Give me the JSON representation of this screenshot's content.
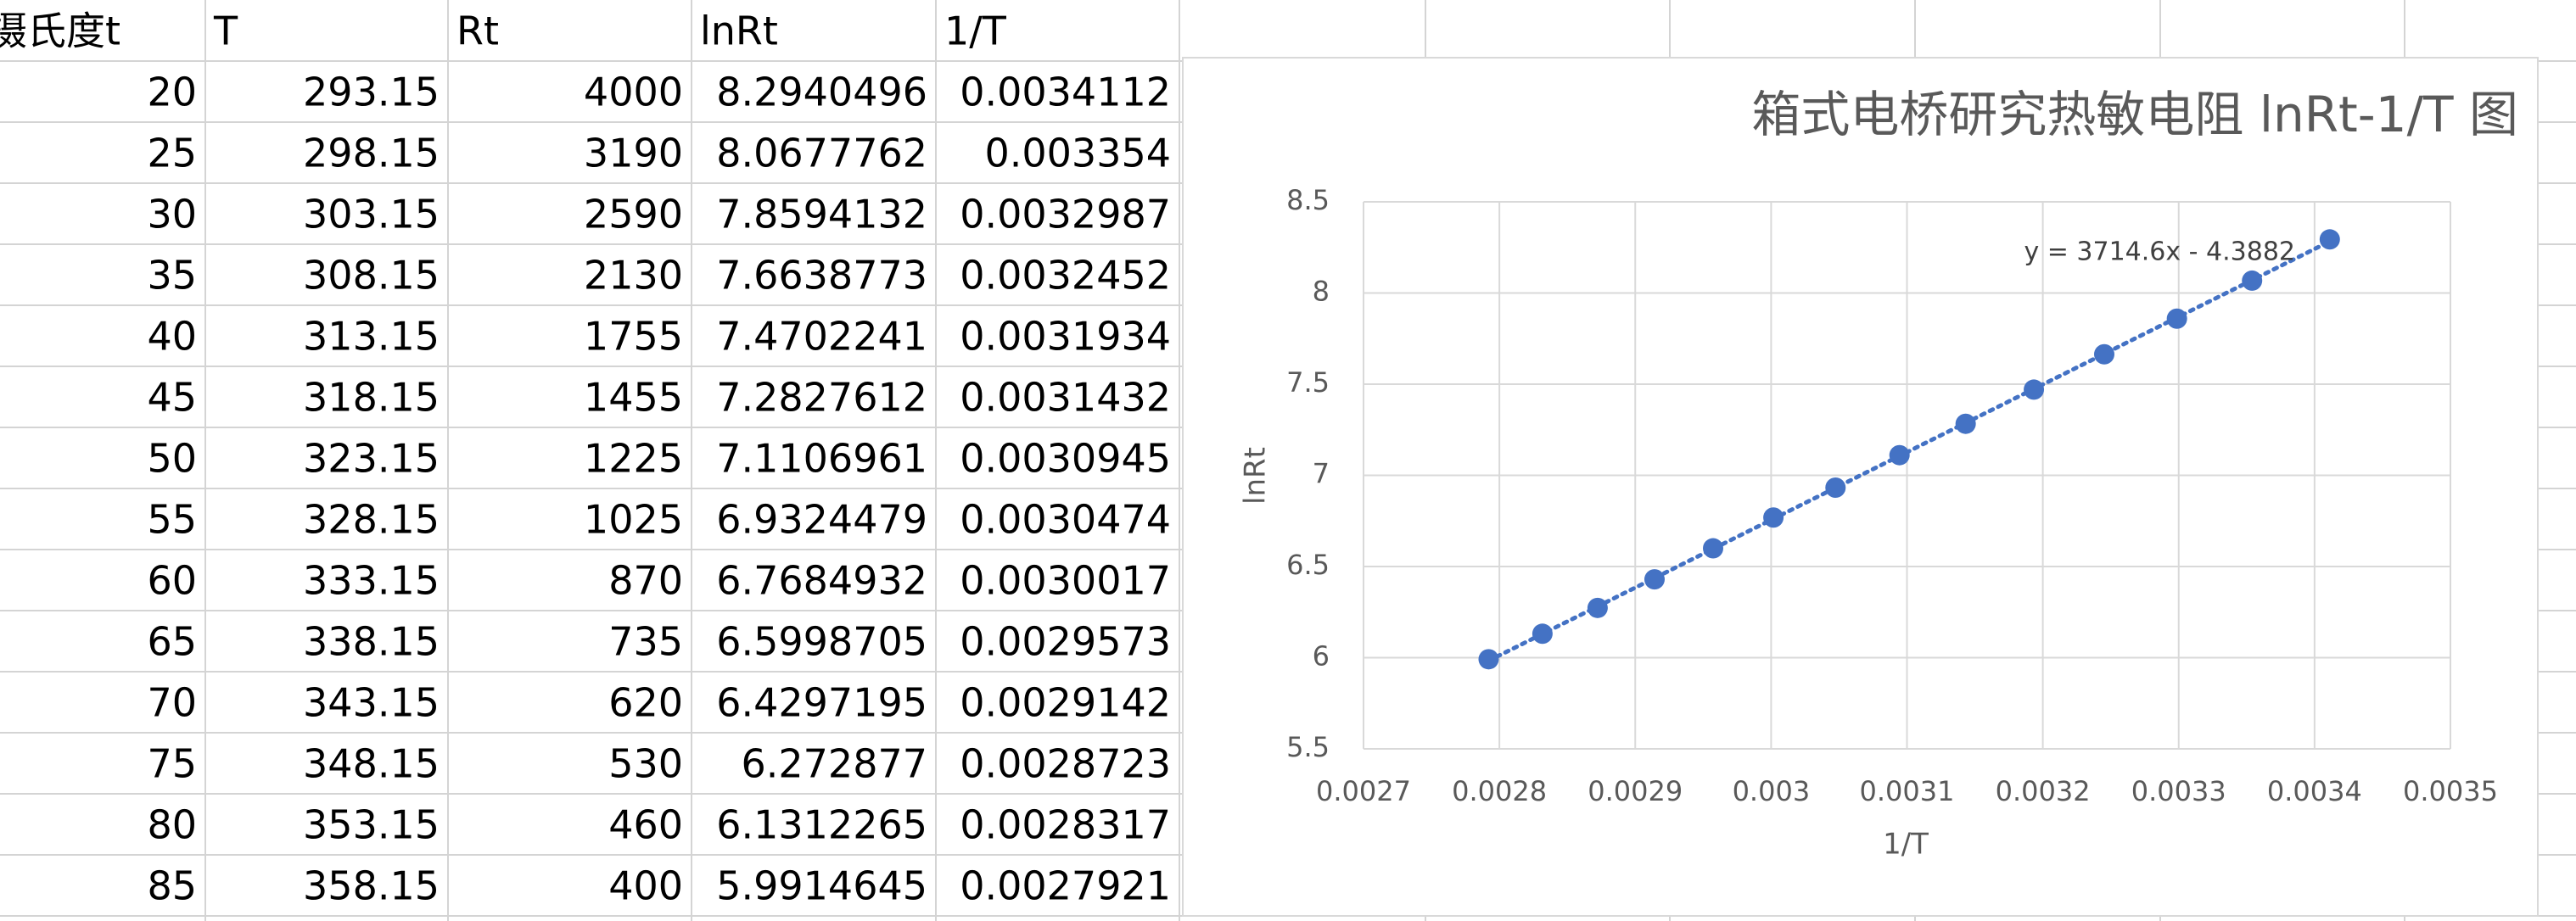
{
  "table": {
    "columns": [
      "摄氏度t",
      "T",
      "Rt",
      "lnRt",
      "1/T"
    ],
    "rows": [
      [
        20,
        293.15,
        4000,
        8.2940496,
        0.0034112
      ],
      [
        25,
        298.15,
        3190,
        8.0677762,
        0.003354
      ],
      [
        30,
        303.15,
        2590,
        7.8594132,
        0.0032987
      ],
      [
        35,
        308.15,
        2130,
        7.6638773,
        0.0032452
      ],
      [
        40,
        313.15,
        1755,
        7.4702241,
        0.0031934
      ],
      [
        45,
        318.15,
        1455,
        7.2827612,
        0.0031432
      ],
      [
        50,
        323.15,
        1225,
        7.1106961,
        0.0030945
      ],
      [
        55,
        328.15,
        1025,
        6.9324479,
        0.0030474
      ],
      [
        60,
        333.15,
        870,
        6.7684932,
        0.0030017
      ],
      [
        65,
        338.15,
        735,
        6.5998705,
        0.0029573
      ],
      [
        70,
        343.15,
        620,
        6.4297195,
        0.0029142
      ],
      [
        75,
        348.15,
        530,
        6.272877,
        0.0028723
      ],
      [
        80,
        353.15,
        460,
        6.1312265,
        0.0028317
      ],
      [
        85,
        358.15,
        400,
        5.9914645,
        0.0027921
      ]
    ]
  },
  "chart_data": {
    "type": "scatter",
    "title": "箱式电桥研究热敏电阻 lnRt-1/T 图",
    "x_label": "1/T",
    "y_label": "lnRt",
    "x": [
      0.0034112,
      0.003354,
      0.0032987,
      0.0032452,
      0.0031934,
      0.0031432,
      0.0030945,
      0.0030474,
      0.0030017,
      0.0029573,
      0.0029142,
      0.0028723,
      0.0028317,
      0.0027921
    ],
    "values": [
      8.2940496,
      8.0677762,
      7.8594132,
      7.6638773,
      7.4702241,
      7.2827612,
      7.1106961,
      6.9324479,
      6.7684932,
      6.5998705,
      6.4297195,
      6.272877,
      6.1312265,
      5.9914645
    ],
    "color": "#4472c4",
    "trendline_label": "y = 3714.6x - 4.3882",
    "xlim": [
      0.0027,
      0.0035
    ],
    "xticks": [
      0.0027,
      0.0028,
      0.0029,
      0.003,
      0.0031,
      0.0032,
      0.0033,
      0.0034,
      0.0035
    ],
    "ylim": [
      5.5,
      8.5
    ],
    "yticks": [
      5.5,
      6,
      6.5,
      7,
      7.5,
      8,
      8.5
    ],
    "grid": true
  }
}
